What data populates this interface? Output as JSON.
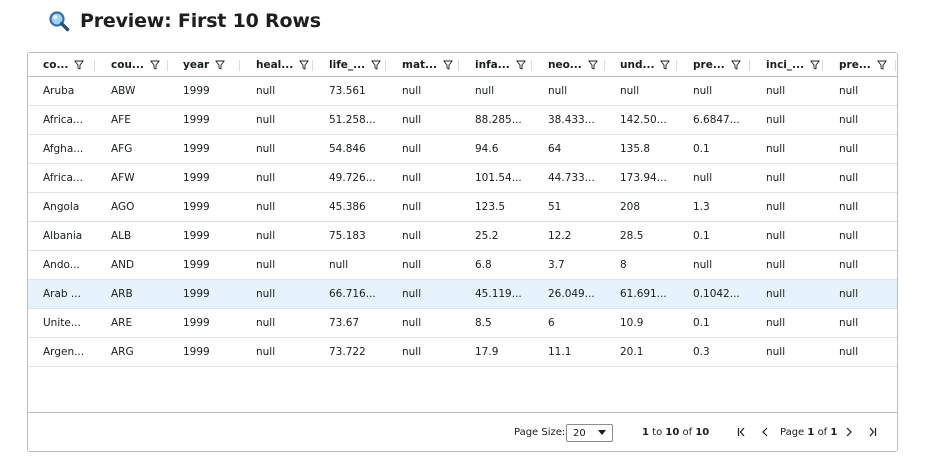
{
  "title": {
    "icon": "magnifier-icon",
    "text": "Preview: First 10 Rows"
  },
  "columns": [
    "co...",
    "cou...",
    "year",
    "heal...",
    "life_...",
    "mat...",
    "infa...",
    "neo...",
    "und...",
    "pre...",
    "inci_...",
    "pre..."
  ],
  "rows": [
    [
      "Aruba",
      "ABW",
      "1999",
      "null",
      "73.561",
      "null",
      "null",
      "null",
      "null",
      "null",
      "null",
      "null"
    ],
    [
      "Africa...",
      "AFE",
      "1999",
      "null",
      "51.258...",
      "null",
      "88.285...",
      "38.433...",
      "142.50...",
      "6.6847...",
      "null",
      "null"
    ],
    [
      "Afgha...",
      "AFG",
      "1999",
      "null",
      "54.846",
      "null",
      "94.6",
      "64",
      "135.8",
      "0.1",
      "null",
      "null"
    ],
    [
      "Africa...",
      "AFW",
      "1999",
      "null",
      "49.726...",
      "null",
      "101.54...",
      "44.733...",
      "173.94...",
      "null",
      "null",
      "null"
    ],
    [
      "Angola",
      "AGO",
      "1999",
      "null",
      "45.386",
      "null",
      "123.5",
      "51",
      "208",
      "1.3",
      "null",
      "null"
    ],
    [
      "Albania",
      "ALB",
      "1999",
      "null",
      "75.183",
      "null",
      "25.2",
      "12.2",
      "28.5",
      "0.1",
      "null",
      "null"
    ],
    [
      "Ando...",
      "AND",
      "1999",
      "null",
      "null",
      "null",
      "6.8",
      "3.7",
      "8",
      "null",
      "null",
      "null"
    ],
    [
      "Arab ...",
      "ARB",
      "1999",
      "null",
      "66.716...",
      "null",
      "45.119...",
      "26.049...",
      "61.691...",
      "0.1042...",
      "null",
      "null"
    ],
    [
      "Unite...",
      "ARE",
      "1999",
      "null",
      "73.67",
      "null",
      "8.5",
      "6",
      "10.9",
      "0.1",
      "null",
      "null"
    ],
    [
      "Argen...",
      "ARG",
      "1999",
      "null",
      "73.722",
      "null",
      "17.9",
      "11.1",
      "20.1",
      "0.3",
      "null",
      "null"
    ]
  ],
  "selected_row": 7,
  "footer": {
    "page_size_label": "Page Size:",
    "page_size_value": "20",
    "range_from": "1",
    "range_to_word": "to",
    "range_to": "10",
    "of_word": "of",
    "total": "10",
    "page_word": "Page",
    "page_current": "1",
    "page_of_word": "of",
    "page_total": "1"
  },
  "icons": {
    "filter": "filter-icon",
    "first": "first-page-icon",
    "prev": "previous-page-icon",
    "next": "next-page-icon",
    "last": "last-page-icon",
    "dropdown": "chevron-down-icon"
  },
  "colors": {
    "border": "#babfc7",
    "row_border": "#dde2eb",
    "selected_row": "#e6f3fc",
    "text": "#181d1f"
  }
}
